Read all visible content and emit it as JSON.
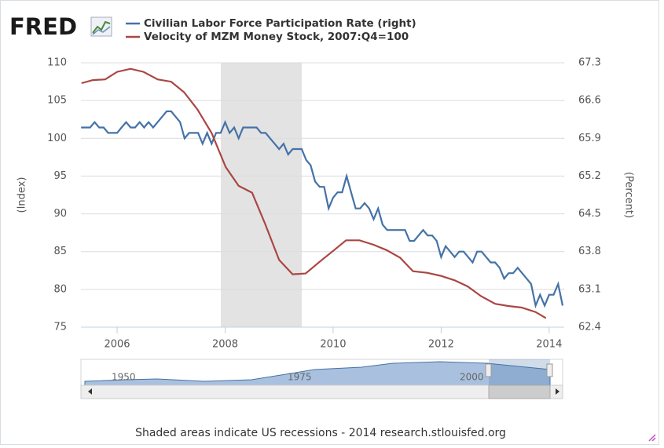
{
  "chart_data": {
    "type": "line",
    "logo": "FRED",
    "note": "Shaded areas indicate US recessions - 2014 research.stlouisfed.org",
    "ylabel": "(Index)",
    "y2label": "(Percent)",
    "xlim": [
      2005.33,
      2014.25
    ],
    "xticks": [
      2006,
      2008,
      2010,
      2012,
      2014
    ],
    "ylim": [
      75,
      110
    ],
    "yticks": [
      75,
      80,
      85,
      90,
      95,
      100,
      105,
      110
    ],
    "y2lim": [
      62.4,
      67.3
    ],
    "y2ticks": [
      62.4,
      63.1,
      63.8,
      64.5,
      65.2,
      65.9,
      66.6,
      67.3
    ],
    "grid": true,
    "recessions": [
      {
        "start": 2007.92,
        "end": 2009.42
      }
    ],
    "navigator": {
      "labels": [
        "1950",
        "1975",
        "2000"
      ]
    },
    "series": [
      {
        "name": "Civilian Labor Force Participation Rate (right)",
        "color": "#4572a7",
        "axis": "y2",
        "x": [
          2005.333,
          2005.417,
          2005.5,
          2005.583,
          2005.667,
          2005.75,
          2005.833,
          2005.917,
          2006.0,
          2006.083,
          2006.167,
          2006.25,
          2006.333,
          2006.417,
          2006.5,
          2006.583,
          2006.667,
          2006.75,
          2006.833,
          2006.917,
          2007.0,
          2007.083,
          2007.167,
          2007.25,
          2007.333,
          2007.417,
          2007.5,
          2007.583,
          2007.667,
          2007.75,
          2007.833,
          2007.917,
          2008.0,
          2008.083,
          2008.167,
          2008.25,
          2008.333,
          2008.417,
          2008.5,
          2008.583,
          2008.667,
          2008.75,
          2008.833,
          2008.917,
          2009.0,
          2009.083,
          2009.167,
          2009.25,
          2009.333,
          2009.417,
          2009.5,
          2009.583,
          2009.667,
          2009.75,
          2009.833,
          2009.917,
          2010.0,
          2010.083,
          2010.167,
          2010.25,
          2010.333,
          2010.417,
          2010.5,
          2010.583,
          2010.667,
          2010.75,
          2010.833,
          2010.917,
          2011.0,
          2011.083,
          2011.167,
          2011.25,
          2011.333,
          2011.417,
          2011.5,
          2011.583,
          2011.667,
          2011.75,
          2011.833,
          2011.917,
          2012.0,
          2012.083,
          2012.167,
          2012.25,
          2012.333,
          2012.417,
          2012.5,
          2012.583,
          2012.667,
          2012.75,
          2012.833,
          2012.917,
          2013.0,
          2013.083,
          2013.167,
          2013.25,
          2013.333,
          2013.417,
          2013.5,
          2013.583,
          2013.667,
          2013.75,
          2013.833,
          2013.917,
          2014.0,
          2014.083,
          2014.167,
          2014.25
        ],
        "values": [
          66.1,
          66.1,
          66.1,
          66.2,
          66.1,
          66.1,
          66.0,
          66.0,
          66.0,
          66.1,
          66.2,
          66.1,
          66.1,
          66.2,
          66.1,
          66.2,
          66.1,
          66.2,
          66.3,
          66.4,
          66.4,
          66.3,
          66.2,
          65.9,
          66.0,
          66.0,
          66.0,
          65.8,
          66.0,
          65.8,
          66.0,
          66.0,
          66.2,
          66.0,
          66.1,
          65.9,
          66.1,
          66.1,
          66.1,
          66.1,
          66.0,
          66.0,
          65.9,
          65.8,
          65.7,
          65.8,
          65.6,
          65.7,
          65.7,
          65.7,
          65.5,
          65.4,
          65.1,
          65.0,
          65.0,
          64.6,
          64.8,
          64.9,
          64.9,
          65.2,
          64.9,
          64.6,
          64.6,
          64.7,
          64.6,
          64.4,
          64.6,
          64.3,
          64.2,
          64.2,
          64.2,
          64.2,
          64.2,
          64.0,
          64.0,
          64.1,
          64.2,
          64.1,
          64.1,
          64.0,
          63.7,
          63.9,
          63.8,
          63.7,
          63.8,
          63.8,
          63.7,
          63.6,
          63.8,
          63.8,
          63.7,
          63.6,
          63.6,
          63.5,
          63.3,
          63.4,
          63.4,
          63.5,
          63.4,
          63.3,
          63.2,
          62.8,
          63.0,
          62.8,
          63.0,
          63.0,
          63.2,
          62.8
        ]
      },
      {
        "name": "Velocity of MZM Money Stock, 2007:Q4=100",
        "color": "#aa4643",
        "axis": "y",
        "x": [
          2005.34,
          2005.55,
          2005.78,
          2006.0,
          2006.25,
          2006.49,
          2006.75,
          2007.0,
          2007.24,
          2007.49,
          2007.75,
          2008.01,
          2008.25,
          2008.5,
          2008.74,
          2009.0,
          2009.25,
          2009.49,
          2009.74,
          2010.0,
          2010.24,
          2010.49,
          2010.75,
          2010.99,
          2011.24,
          2011.48,
          2011.74,
          2011.99,
          2012.25,
          2012.49,
          2012.74,
          2013.0,
          2013.24,
          2013.49,
          2013.75,
          2013.94
        ],
        "values": [
          107.3,
          107.7,
          107.8,
          108.8,
          109.2,
          108.8,
          107.8,
          107.5,
          106.1,
          103.8,
          100.7,
          96.2,
          93.7,
          92.8,
          88.7,
          83.9,
          82.0,
          82.1,
          83.6,
          85.1,
          86.5,
          86.5,
          85.9,
          85.2,
          84.2,
          82.4,
          82.2,
          81.8,
          81.2,
          80.4,
          79.1,
          78.1,
          77.8,
          77.6,
          77.0,
          76.2
        ]
      }
    ]
  }
}
